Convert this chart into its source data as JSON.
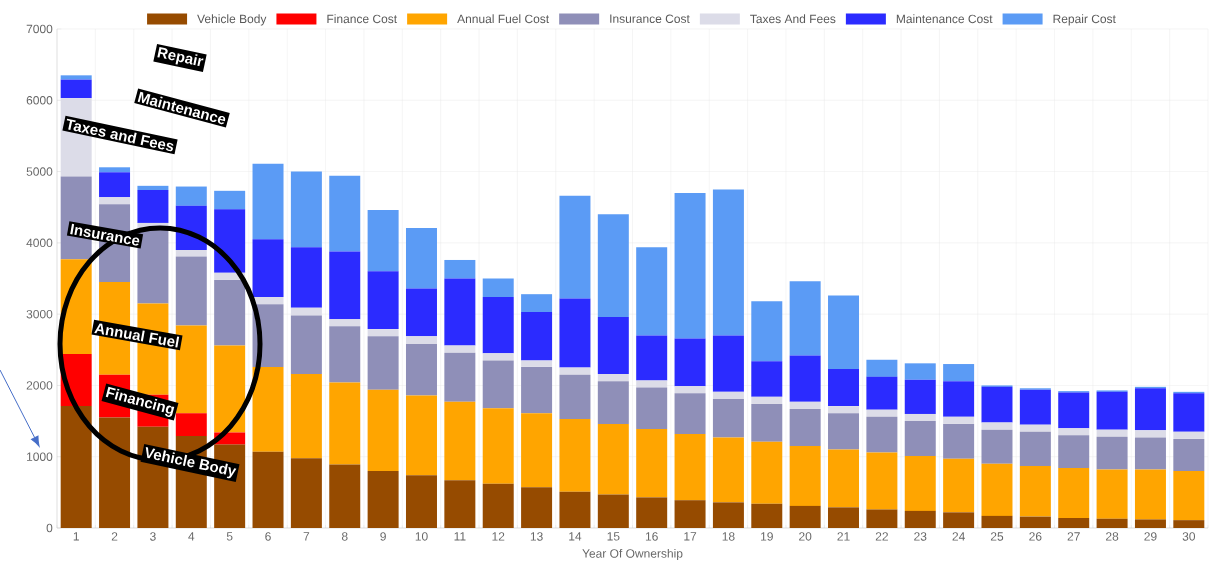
{
  "chart_data": {
    "type": "bar",
    "stacked": true,
    "xlabel": "Year Of Ownership",
    "categories": [
      "1",
      "2",
      "3",
      "4",
      "5",
      "6",
      "7",
      "8",
      "9",
      "10",
      "11",
      "12",
      "13",
      "14",
      "15",
      "16",
      "17",
      "18",
      "19",
      "20",
      "21",
      "22",
      "23",
      "24",
      "25",
      "26",
      "27",
      "28",
      "29",
      "30"
    ],
    "series": [
      {
        "name": "Vehicle Body",
        "color": "#964b00",
        "values": [
          1710,
          1550,
          1420,
          1290,
          1170,
          1070,
          980,
          890,
          800,
          740,
          670,
          620,
          570,
          510,
          470,
          430,
          390,
          360,
          340,
          310,
          290,
          260,
          240,
          220,
          170,
          160,
          140,
          130,
          120,
          110
        ]
      },
      {
        "name": "Finance Cost",
        "color": "#ff0000",
        "values": [
          730,
          600,
          450,
          320,
          170,
          0,
          0,
          0,
          0,
          0,
          0,
          0,
          0,
          0,
          0,
          0,
          0,
          0,
          0,
          0,
          0,
          0,
          0,
          0,
          0,
          0,
          0,
          0,
          0,
          0
        ]
      },
      {
        "name": "Annual Fuel Cost",
        "color": "#ffa500",
        "values": [
          1330,
          1300,
          1280,
          1230,
          1220,
          1190,
          1180,
          1150,
          1140,
          1120,
          1100,
          1060,
          1040,
          1020,
          990,
          960,
          930,
          910,
          870,
          840,
          810,
          800,
          770,
          750,
          730,
          710,
          700,
          690,
          700,
          690
        ]
      },
      {
        "name": "Insurance Cost",
        "color": "#8f8fb8",
        "values": [
          1160,
          1090,
          1030,
          970,
          920,
          880,
          820,
          790,
          750,
          720,
          690,
          670,
          650,
          620,
          600,
          580,
          570,
          540,
          530,
          520,
          510,
          500,
          490,
          490,
          480,
          480,
          460,
          460,
          450,
          450
        ]
      },
      {
        "name": "Taxes And Fees",
        "color": "#dcdce8",
        "values": [
          1100,
          100,
          100,
          90,
          100,
          100,
          110,
          100,
          100,
          110,
          100,
          100,
          90,
          100,
          100,
          100,
          100,
          100,
          100,
          100,
          100,
          100,
          100,
          100,
          100,
          100,
          100,
          100,
          100,
          100
        ]
      },
      {
        "name": "Maintenance Cost",
        "color": "#2b2bff",
        "values": [
          260,
          350,
          460,
          620,
          890,
          810,
          850,
          950,
          810,
          670,
          940,
          790,
          680,
          970,
          800,
          630,
          670,
          790,
          500,
          650,
          520,
          460,
          480,
          500,
          500,
          490,
          500,
          530,
          590,
          540
        ]
      },
      {
        "name": "Repair Cost",
        "color": "#5b9bf5",
        "values": [
          60,
          70,
          60,
          270,
          260,
          1060,
          1060,
          1060,
          860,
          850,
          260,
          260,
          250,
          1440,
          1440,
          1240,
          2040,
          2050,
          840,
          1040,
          1030,
          240,
          230,
          240,
          20,
          20,
          20,
          20,
          20,
          20
        ]
      }
    ],
    "ylim": [
      0,
      7000
    ],
    "yticks": [
      0,
      1000,
      2000,
      3000,
      4000,
      5000,
      6000,
      7000
    ],
    "grid": true,
    "legend": "top",
    "annotations": [
      "Repair",
      "Maintenance",
      "Taxes and Fees",
      "Insurance",
      "Annual  Fuel",
      "Financing",
      "Vehicle Body"
    ]
  }
}
